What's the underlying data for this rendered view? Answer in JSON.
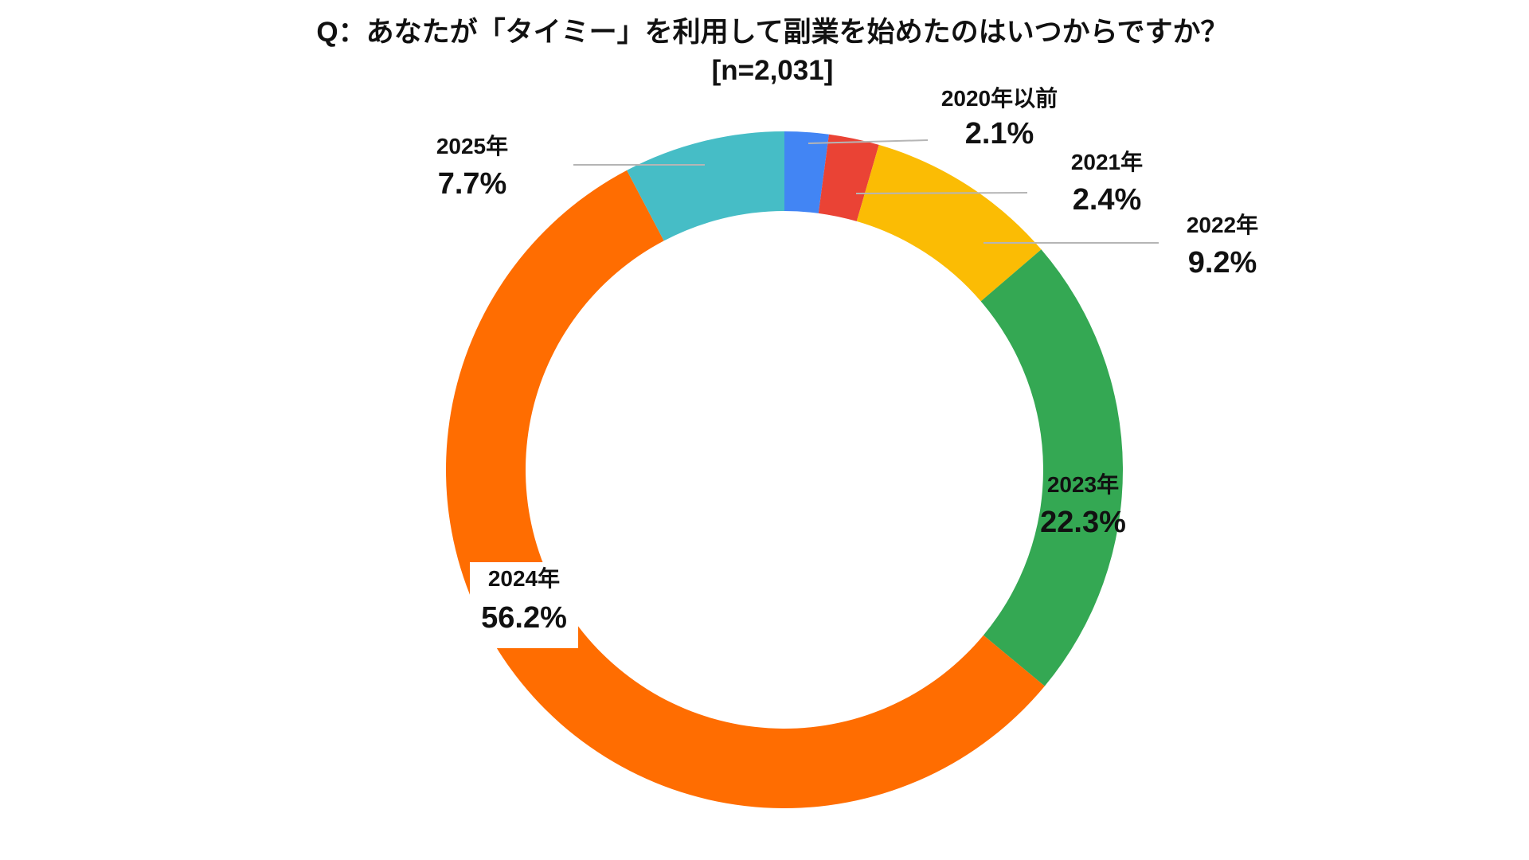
{
  "chart_data": {
    "type": "pie",
    "variant": "donut",
    "title": "Q：あなたが「タイミー」を利用して副業を始めたのはいつからですか？",
    "subtitle": "[n=2,031]",
    "start_angle_deg": 0,
    "direction": "clockwise",
    "slices": [
      {
        "label": "2020年以前",
        "value": 2.1,
        "value_label": "2.1%",
        "color": "#4285F4"
      },
      {
        "label": "2021年",
        "value": 2.4,
        "value_label": "2.4%",
        "color": "#EA4335"
      },
      {
        "label": "2022年",
        "value": 9.2,
        "value_label": "9.2%",
        "color": "#FBBC04"
      },
      {
        "label": "2023年",
        "value": 22.3,
        "value_label": "22.3%",
        "color": "#34A853"
      },
      {
        "label": "2024年",
        "value": 56.2,
        "value_label": "56.2%",
        "color": "#FF6D01"
      },
      {
        "label": "2025年",
        "value": 7.7,
        "value_label": "7.7%",
        "color": "#46BDC6"
      }
    ]
  }
}
